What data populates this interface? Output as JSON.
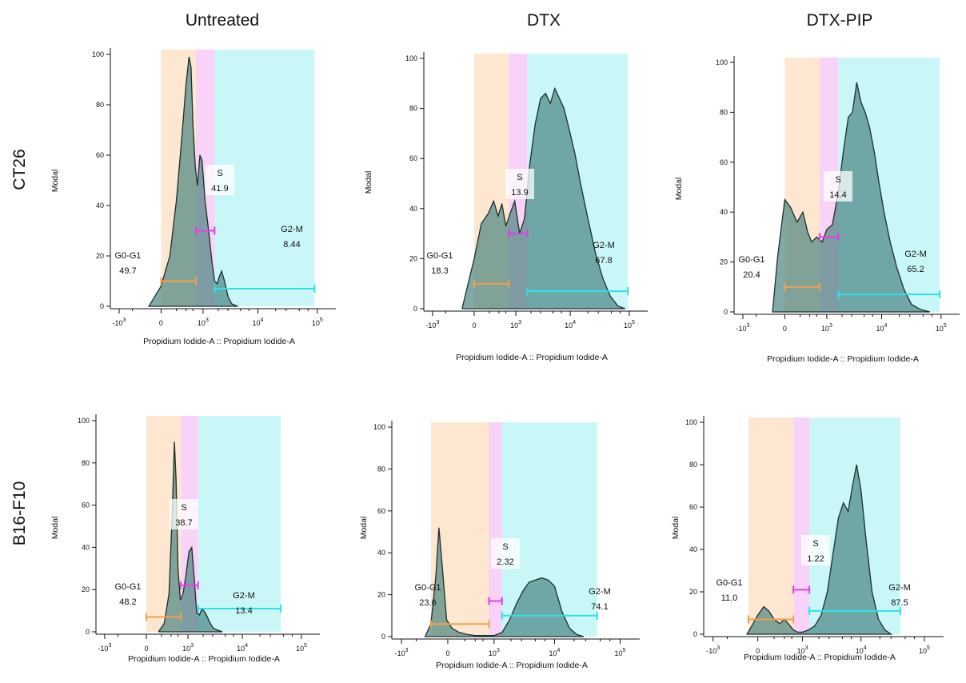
{
  "columns": [
    "Untreated",
    "DTX",
    "DTX-PIP"
  ],
  "rows": [
    "CT26",
    "B16-F10"
  ],
  "colors": {
    "g0g1_band": "#fde7d0",
    "s_band": "#f9d3f7",
    "g2m_band": "#c9f7f8",
    "g0g1_bar": "#f0a050",
    "s_bar": "#e040e0",
    "g2m_bar": "#30e0e8",
    "histogram_fill": "#3d7c78",
    "histogram_stroke": "#1e2e2e"
  },
  "chart_data": [
    {
      "type": "area",
      "row": "CT26",
      "column": "Untreated",
      "xlabel": "Propidium Iodide-A :: Propidium Iodide-A",
      "ylabel": "Modal",
      "x_scale": "biexponential",
      "ylim": [
        0,
        100
      ],
      "yticks": [
        0,
        20,
        40,
        60,
        80,
        100
      ],
      "xticks": [
        "-10^3",
        "0",
        "10^3",
        "10^4",
        "10^5"
      ],
      "gates": [
        {
          "name": "G0-G1",
          "value": "49.7",
          "from": 0,
          "to": 700
        },
        {
          "name": "S",
          "value": "41.9",
          "from": 700,
          "to": 1700
        },
        {
          "name": "G2-M",
          "value": "8.44",
          "from": 1700,
          "to": 90000
        }
      ],
      "histogram": {
        "x": [
          -150,
          0,
          100,
          200,
          300,
          400,
          480,
          540,
          600,
          680,
          760,
          860,
          950,
          1100,
          1300,
          1500,
          1700,
          1900,
          2100,
          2300,
          2600,
          3000,
          3500,
          4500
        ],
        "y": [
          0,
          8,
          20,
          42,
          66,
          88,
          99,
          95,
          72,
          55,
          48,
          60,
          58,
          42,
          30,
          18,
          10,
          9,
          12,
          14,
          10,
          4,
          1,
          0
        ]
      }
    },
    {
      "type": "area",
      "row": "CT26",
      "column": "DTX",
      "xlabel": "Propidium Iodide-A :: Propidium Iodide-A",
      "ylabel": "Modal",
      "x_scale": "biexponential",
      "ylim": [
        0,
        100
      ],
      "yticks": [
        0,
        20,
        40,
        60,
        80,
        100
      ],
      "xticks": [
        "-10^3",
        "0",
        "10^3",
        "10^4",
        "10^5"
      ],
      "gates": [
        {
          "name": "G0-G1",
          "value": "18.3",
          "from": 0,
          "to": 700
        },
        {
          "name": "S",
          "value": "13.9",
          "from": 700,
          "to": 1700
        },
        {
          "name": "G2-M",
          "value": "67.8",
          "from": 1700,
          "to": 95000
        }
      ],
      "histogram": {
        "x": [
          -150,
          0,
          80,
          180,
          280,
          380,
          480,
          600,
          750,
          950,
          1200,
          1500,
          1900,
          2400,
          3000,
          3700,
          4500,
          5400,
          6500,
          7800,
          9500,
          12000,
          15000,
          20000,
          27000,
          36000,
          48000,
          65000,
          85000
        ],
        "y": [
          0,
          20,
          34,
          38,
          43,
          37,
          42,
          33,
          38,
          43,
          30,
          36,
          58,
          74,
          84,
          86,
          82,
          88,
          84,
          80,
          72,
          62,
          50,
          36,
          22,
          12,
          5,
          1,
          0
        ]
      }
    },
    {
      "type": "area",
      "row": "CT26",
      "column": "DTX-PIP",
      "xlabel": "Propidium Iodide-A :: Propidium Iodide-A",
      "ylabel": "Modal",
      "x_scale": "biexponential",
      "ylim": [
        0,
        100
      ],
      "yticks": [
        0,
        20,
        40,
        60,
        80,
        100
      ],
      "xticks": [
        "-10^3",
        "0",
        "10^3",
        "10^4",
        "10^5"
      ],
      "gates": [
        {
          "name": "G0-G1",
          "value": "20.4",
          "from": 0,
          "to": 700
        },
        {
          "name": "S",
          "value": "14.4",
          "from": 700,
          "to": 1700
        },
        {
          "name": "G2-M",
          "value": "65.2",
          "from": 1700,
          "to": 95000
        }
      ],
      "histogram": {
        "x": [
          -150,
          -80,
          0,
          60,
          150,
          250,
          350,
          450,
          600,
          800,
          1000,
          1300,
          1700,
          2100,
          2600,
          3100,
          3700,
          4400,
          5200,
          6200,
          7500,
          9000,
          11000,
          14000,
          18000,
          24000,
          32000,
          45000,
          65000
        ],
        "y": [
          0,
          22,
          45,
          42,
          36,
          40,
          32,
          28,
          30,
          28,
          33,
          35,
          48,
          64,
          78,
          80,
          92,
          84,
          80,
          74,
          64,
          52,
          40,
          28,
          18,
          9,
          3,
          1,
          0
        ]
      }
    },
    {
      "type": "area",
      "row": "B16-F10",
      "column": "Untreated",
      "xlabel": "Propidium Iodide-A :: Propidium Iodide-A",
      "ylabel": "Modal",
      "x_scale": "biexponential",
      "ylim": [
        0,
        100
      ],
      "yticks": [
        0,
        20,
        40,
        60,
        80,
        100
      ],
      "xticks": [
        "-10^3",
        "0",
        "10^3",
        "10^4",
        "10^5"
      ],
      "gates": [
        {
          "name": "G0-G1",
          "value": "48.2",
          "from": 0,
          "to": 700
        },
        {
          "name": "S",
          "value": "38.7",
          "from": 700,
          "to": 1600
        },
        {
          "name": "G2-M",
          "value": "13.4",
          "from": 1600,
          "to": 45000
        }
      ],
      "histogram": {
        "x": [
          150,
          250,
          350,
          430,
          490,
          540,
          600,
          680,
          780,
          900,
          1050,
          1200,
          1350,
          1500,
          1700,
          1900,
          2200,
          2600,
          3000,
          3500,
          4500
        ],
        "y": [
          0,
          4,
          18,
          55,
          90,
          72,
          30,
          15,
          18,
          26,
          38,
          40,
          25,
          9,
          8,
          11,
          9,
          5,
          2,
          1,
          0
        ]
      }
    },
    {
      "type": "area",
      "row": "B16-F10",
      "column": "DTX",
      "xlabel": "Propidium Iodide-A :: Propidium Iodide-A",
      "ylabel": "Modal",
      "x_scale": "biexponential",
      "ylim": [
        0,
        100
      ],
      "yticks": [
        0,
        20,
        40,
        60,
        80,
        100
      ],
      "xticks": [
        "-10^3",
        "0",
        "10^3",
        "10^4",
        "10^5"
      ],
      "gates": [
        {
          "name": "G0-G1",
          "value": "23.6",
          "from": -200,
          "to": 800
        },
        {
          "name": "S",
          "value": "2.32",
          "from": 800,
          "to": 1400
        },
        {
          "name": "G2-M",
          "value": "74.1",
          "from": 1400,
          "to": 45000
        }
      ],
      "histogram": {
        "x": [
          -300,
          -200,
          -130,
          -90,
          -50,
          -10,
          40,
          120,
          250,
          400,
          600,
          800,
          1000,
          1400,
          1900,
          2500,
          3200,
          4000,
          5000,
          6300,
          8000,
          10000,
          13000,
          17000,
          22000,
          28000
        ],
        "y": [
          0,
          6,
          28,
          52,
          32,
          8,
          4,
          2,
          1,
          0.5,
          0.5,
          0.5,
          0.5,
          2,
          8,
          16,
          22,
          26,
          27,
          28,
          27,
          24,
          12,
          4,
          1,
          0
        ]
      }
    },
    {
      "type": "area",
      "row": "B16-F10",
      "column": "DTX-PIP",
      "xlabel": "Propidium Iodide-A :: Propidium Iodide-A",
      "ylabel": "Modal",
      "x_scale": "biexponential",
      "ylim": [
        0,
        100
      ],
      "yticks": [
        0,
        20,
        40,
        60,
        80,
        100
      ],
      "xticks": [
        "-10^3",
        "0",
        "10^3",
        "10^4",
        "10^5"
      ],
      "gates": [
        {
          "name": "G0-G1",
          "value": "11.0",
          "from": -100,
          "to": 650
        },
        {
          "name": "S",
          "value": "1.22",
          "from": 650,
          "to": 1350
        },
        {
          "name": "G2-M",
          "value": "87.5",
          "from": 1350,
          "to": 42000
        }
      ],
      "histogram": {
        "x": [
          -120,
          -60,
          0,
          60,
          120,
          200,
          300,
          400,
          500,
          650,
          800,
          1000,
          1300,
          1700,
          2200,
          2800,
          3500,
          4300,
          5200,
          6200,
          7300,
          8500,
          10000,
          12000,
          15000,
          19000,
          24000,
          30000
        ],
        "y": [
          0,
          4,
          9,
          13,
          11,
          7,
          5,
          7,
          5,
          2,
          1,
          1,
          2,
          4,
          9,
          20,
          38,
          55,
          62,
          58,
          70,
          80,
          68,
          45,
          20,
          7,
          2,
          0
        ]
      }
    }
  ]
}
